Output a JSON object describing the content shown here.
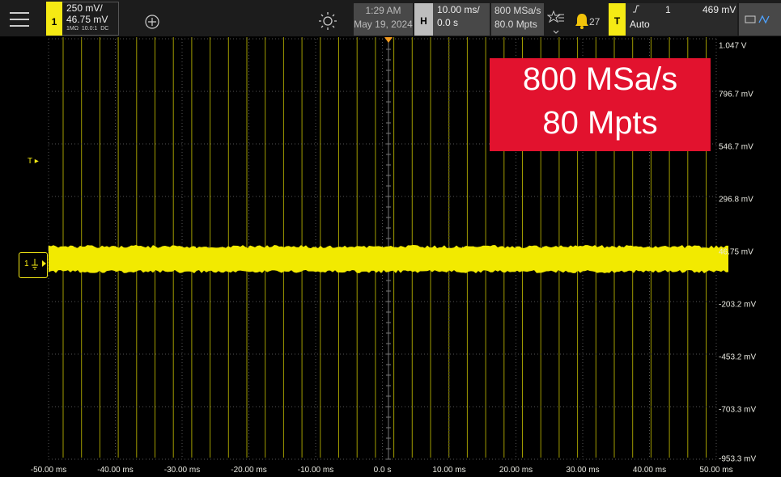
{
  "status_bar": {
    "channel": {
      "number": "1",
      "scale": "250 mV/",
      "offset": "46.75 mV",
      "settings": "1MΩ  10.0:1  DC"
    },
    "clock": {
      "time": "1:29 AM",
      "date": "May 19, 2024"
    },
    "horizontal": {
      "label": "H",
      "scale": "10.00 ms/",
      "delay": "0.0 s"
    },
    "acquisition": {
      "sample_rate": "800 MSa/s",
      "memory": "80.0 Mpts"
    },
    "notifications": "27",
    "trigger": {
      "label": "T",
      "mode": "Auto",
      "source": "1",
      "level": "469 mV"
    }
  },
  "screen": {
    "y_labels": [
      "1.047 V",
      "796.7 mV",
      "546.7 mV",
      "296.8 mV",
      "46.75 mV",
      "-203.2 mV",
      "-453.2 mV",
      "-703.3 mV",
      "-953.3 mV"
    ],
    "x_labels": [
      "-50.00 ms",
      "-40.00 ms",
      "-30.00 ms",
      "-20.00 ms",
      "-10.00 ms",
      "0.0 s",
      "10.00 ms",
      "20.00 ms",
      "30.00 ms",
      "40.00 ms",
      "50.00 ms"
    ],
    "annotation": [
      "800 MSa/s",
      "80 Mpts"
    ],
    "trigger_marker": "T",
    "channel_marker": "1"
  }
}
